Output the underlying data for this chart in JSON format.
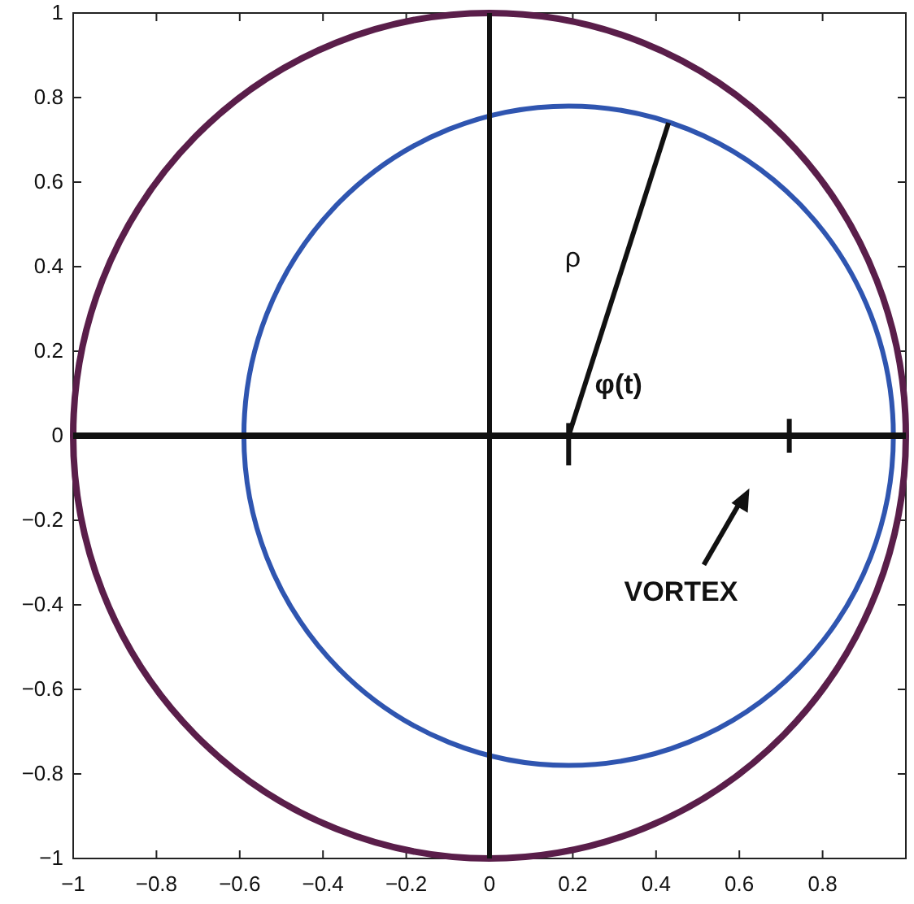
{
  "chart_data": {
    "type": "line",
    "xlim": [
      -1,
      1
    ],
    "ylim": [
      -1,
      1
    ],
    "xticks": [
      -1,
      -0.8,
      -0.6,
      -0.4,
      -0.2,
      0,
      0.2,
      0.4,
      0.6,
      0.8
    ],
    "yticks": [
      -1,
      -0.8,
      -0.6,
      -0.4,
      -0.2,
      0,
      0.2,
      0.4,
      0.6,
      0.8,
      1
    ],
    "grid": false,
    "marker": "none",
    "line_style": "solid",
    "series": [
      {
        "color": "#111111",
        "x": [
          0,
          0
        ],
        "values": [
          -1,
          1
        ]
      },
      {
        "color": "#111111",
        "x": [
          -1,
          1
        ],
        "values": [
          0,
          0
        ]
      },
      {
        "color": "#111111",
        "x": [
          0.19,
          0.43
        ],
        "values": [
          0,
          0.74
        ]
      },
      {
        "color": "#111111",
        "x": [
          0.19,
          0.19
        ],
        "values": [
          -0.07,
          0.03
        ]
      },
      {
        "color": "#111111",
        "x": [
          0.72,
          0.72
        ],
        "values": [
          -0.04,
          0.04
        ]
      }
    ],
    "annotations": [
      "ρ",
      "φ(t)",
      "VORTEX"
    ]
  }
}
